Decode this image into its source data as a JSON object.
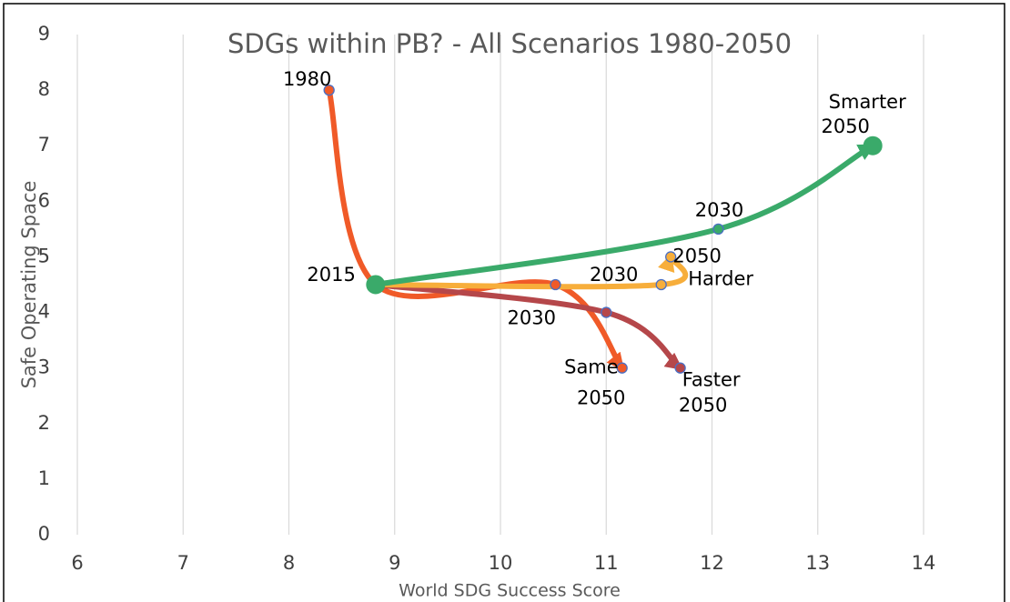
{
  "chart_data": {
    "type": "scatter",
    "title": "SDGs within PB? - All Scenarios 1980-2050",
    "x_label": "World SDG Success Score",
    "y_label": "Safe Operating Space",
    "xlim": [
      6,
      14
    ],
    "xticks": [
      6,
      7,
      8,
      9,
      10,
      11,
      12,
      13,
      14
    ],
    "ylim": [
      0,
      9
    ],
    "yticks": [
      0,
      1,
      2,
      3,
      4,
      5,
      6,
      7,
      8,
      9
    ],
    "grid": true,
    "series": [
      {
        "name": "Same",
        "color": "#f05a28",
        "x": [
          8.38,
          8.82,
          10.52,
          11.15
        ],
        "values": [
          8,
          4.5,
          4.5,
          3
        ],
        "point_labels": [
          [
            "1980"
          ],
          [
            "2015"
          ],
          null,
          [
            "Same",
            "2050"
          ]
        ]
      },
      {
        "name": "Faster",
        "color": "#b5474a",
        "x": [
          8.82,
          11.0,
          11.7
        ],
        "values": [
          4.5,
          4,
          3
        ],
        "point_labels": [
          null,
          [
            "2030"
          ],
          [
            "Faster",
            "2050"
          ]
        ]
      },
      {
        "name": "Harder",
        "color": "#f7ae3b",
        "x": [
          8.82,
          11.52,
          11.61
        ],
        "values": [
          4.5,
          4.5,
          5
        ],
        "point_labels": [
          null,
          [
            "2030"
          ],
          [
            "2050",
            "Harder"
          ]
        ]
      },
      {
        "name": "Smarter",
        "color": "#3aaa6a",
        "x": [
          8.82,
          12.06,
          13.52
        ],
        "values": [
          4.5,
          5.5,
          7
        ],
        "point_labels": [
          null,
          [
            "2030"
          ],
          [
            "Smarter",
            "2050"
          ]
        ],
        "large_markers": [
          true,
          false,
          true
        ]
      }
    ]
  }
}
